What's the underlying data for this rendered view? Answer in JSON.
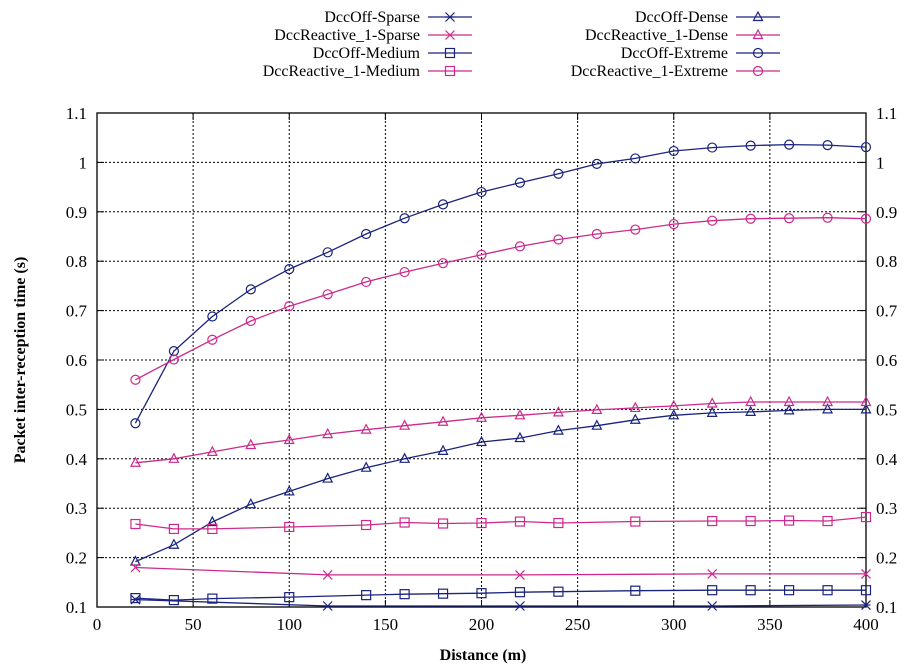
{
  "chart_data": {
    "type": "line",
    "title": "",
    "xlabel": "Distance (m)",
    "ylabel": "Packet inter-reception time (s)",
    "xlim": [
      0,
      400
    ],
    "ylim": [
      0.1,
      1.1
    ],
    "xticks": [
      0,
      50,
      100,
      150,
      200,
      250,
      300,
      350,
      400
    ],
    "yticks": [
      0.1,
      0.2,
      0.3,
      0.4,
      0.5,
      0.6,
      0.7,
      0.8,
      0.9,
      1,
      1.1
    ],
    "ytick_labels": [
      "0.1",
      "0.2",
      "0.3",
      "0.4",
      "0.5",
      "0.6",
      "0.7",
      "0.8",
      "0.9",
      "1",
      "1.1"
    ],
    "grid": true,
    "legend_position": "top-outside",
    "series": [
      {
        "name": "DccOff-Sparse",
        "color": "#1a237e",
        "marker": "star",
        "x": [
          20,
          120,
          220,
          320,
          400
        ],
        "y": [
          0.115,
          0.102,
          0.102,
          0.102,
          0.104
        ]
      },
      {
        "name": "DccOff-Dense",
        "color": "#1a237e",
        "marker": "triangle",
        "x": [
          20,
          40,
          60,
          80,
          100,
          120,
          140,
          160,
          180,
          200,
          220,
          240,
          260,
          280,
          300,
          320,
          340,
          360,
          380,
          400
        ],
        "y": [
          0.192,
          0.226,
          0.272,
          0.308,
          0.334,
          0.36,
          0.382,
          0.4,
          0.416,
          0.434,
          0.442,
          0.457,
          0.467,
          0.479,
          0.488,
          0.493,
          0.495,
          0.498,
          0.5,
          0.5
        ]
      },
      {
        "name": "DccReactive_1-Sparse",
        "color": "#cc2a8c",
        "marker": "x",
        "x": [
          20,
          120,
          220,
          320,
          400
        ],
        "y": [
          0.18,
          0.165,
          0.165,
          0.167,
          0.167
        ]
      },
      {
        "name": "DccReactive_1-Dense",
        "color": "#cc2a8c",
        "marker": "triangle",
        "x": [
          20,
          40,
          60,
          80,
          100,
          120,
          140,
          160,
          180,
          200,
          220,
          240,
          260,
          280,
          300,
          320,
          340,
          360,
          380,
          400
        ],
        "y": [
          0.392,
          0.4,
          0.414,
          0.428,
          0.438,
          0.45,
          0.459,
          0.467,
          0.475,
          0.483,
          0.488,
          0.494,
          0.499,
          0.503,
          0.507,
          0.512,
          0.515,
          0.515,
          0.515,
          0.515
        ]
      },
      {
        "name": "DccOff-Medium",
        "color": "#1a237e",
        "marker": "square",
        "x": [
          20,
          40,
          60,
          100,
          140,
          160,
          180,
          200,
          220,
          240,
          280,
          320,
          340,
          360,
          380,
          400
        ],
        "y": [
          0.118,
          0.114,
          0.117,
          0.12,
          0.124,
          0.126,
          0.127,
          0.128,
          0.13,
          0.131,
          0.133,
          0.134,
          0.134,
          0.134,
          0.134,
          0.134
        ]
      },
      {
        "name": "DccOff-Extreme",
        "color": "#1a237e",
        "marker": "circle",
        "x": [
          20,
          40,
          60,
          80,
          100,
          120,
          140,
          160,
          180,
          200,
          220,
          240,
          260,
          280,
          300,
          320,
          340,
          360,
          380,
          400
        ],
        "y": [
          0.472,
          0.618,
          0.688,
          0.743,
          0.784,
          0.818,
          0.855,
          0.887,
          0.915,
          0.94,
          0.959,
          0.977,
          0.997,
          1.008,
          1.023,
          1.03,
          1.034,
          1.036,
          1.035,
          1.031
        ]
      },
      {
        "name": "DccReactive_1-Medium",
        "color": "#cc2a8c",
        "marker": "square",
        "x": [
          20,
          40,
          60,
          100,
          140,
          160,
          180,
          200,
          220,
          240,
          280,
          320,
          340,
          360,
          380,
          400
        ],
        "y": [
          0.268,
          0.258,
          0.258,
          0.262,
          0.266,
          0.271,
          0.269,
          0.27,
          0.273,
          0.27,
          0.273,
          0.274,
          0.274,
          0.275,
          0.274,
          0.282
        ]
      },
      {
        "name": "DccReactive_1-Extreme",
        "color": "#cc2a8c",
        "marker": "circle",
        "x": [
          20,
          40,
          60,
          80,
          100,
          120,
          140,
          160,
          180,
          200,
          220,
          240,
          260,
          280,
          300,
          320,
          340,
          360,
          380,
          400
        ],
        "y": [
          0.56,
          0.601,
          0.641,
          0.679,
          0.709,
          0.733,
          0.758,
          0.778,
          0.796,
          0.813,
          0.83,
          0.844,
          0.855,
          0.864,
          0.875,
          0.882,
          0.886,
          0.887,
          0.888,
          0.886
        ]
      }
    ]
  }
}
